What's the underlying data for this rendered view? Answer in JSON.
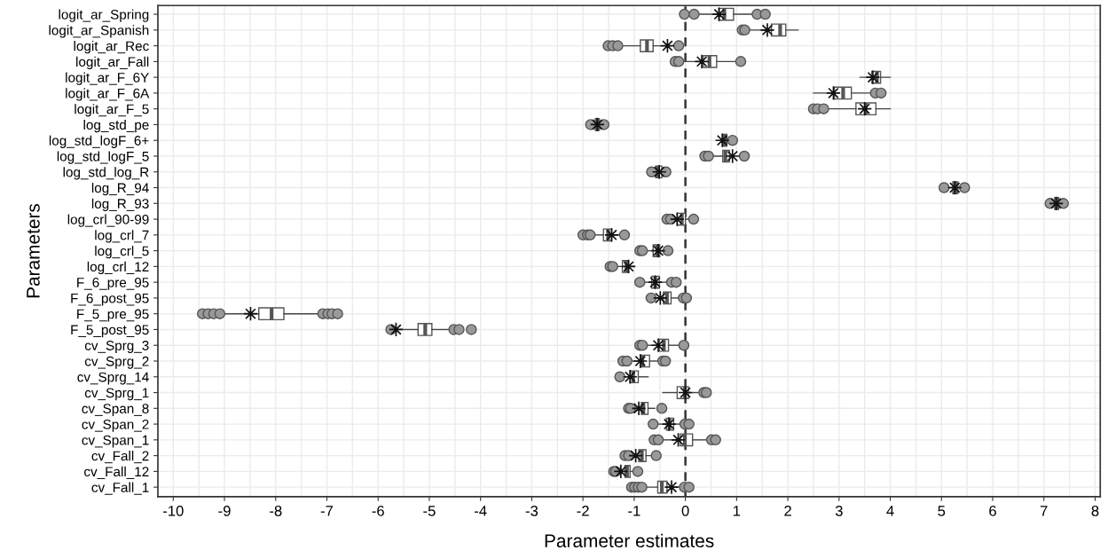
{
  "chart_data": {
    "type": "box",
    "orientation": "horizontal",
    "xlabel": "Parameter estimates",
    "ylabel": "Parameters",
    "categories": [
      "logit_ar_Spring",
      "logit_ar_Spanish",
      "logit_ar_Rec",
      "logit_ar_Fall",
      "logit_ar_F_6Y",
      "logit_ar_F_6A",
      "logit_ar_F_5",
      "log_std_pe",
      "log_std_logF_6+",
      "log_std_logF_5",
      "log_std_log_R",
      "log_R_94",
      "log_R_93",
      "log_crl_90-99",
      "log_crl_7",
      "log_crl_5",
      "log_crl_12",
      "F_6_pre_95",
      "F_6_post_95",
      "F_5_pre_95",
      "F_5_post_95",
      "cv_Sprg_3",
      "cv_Sprg_2",
      "cv_Sprg_14",
      "cv_Sprg_1",
      "cv_Span_8",
      "cv_Span_2",
      "cv_Span_1",
      "cv_Fall_2",
      "cv_Fall_12",
      "cv_Fall_1"
    ],
    "boxes": [
      {
        "low": 0.25,
        "q1": 0.65,
        "median": 0.76,
        "q3": 0.94,
        "high": 1.31,
        "mean": 0.66,
        "outliers": [
          -0.02,
          0.17,
          1.4,
          1.56
        ]
      },
      {
        "low": 1.26,
        "q1": 1.68,
        "median": 1.85,
        "q3": 1.96,
        "high": 2.2,
        "mean": 1.6,
        "outliers": [
          1.11,
          1.16
        ]
      },
      {
        "low": -1.22,
        "q1": -0.88,
        "median": -0.75,
        "q3": -0.63,
        "high": -0.44,
        "mean": -0.35,
        "outliers": [
          -1.51,
          -1.42,
          -1.32,
          -0.13
        ]
      },
      {
        "low": -0.01,
        "q1": 0.35,
        "median": 0.47,
        "q3": 0.61,
        "high": 0.99,
        "mean": 0.32,
        "outliers": [
          -0.2,
          -0.13,
          1.08
        ]
      },
      {
        "low": 3.41,
        "q1": 3.64,
        "median": 3.74,
        "q3": 3.81,
        "high": 4.0,
        "mean": 3.66
      },
      {
        "low": 2.5,
        "q1": 2.91,
        "median": 3.08,
        "q3": 3.24,
        "high": 3.65,
        "mean": 2.89,
        "outliers": [
          3.71,
          3.82
        ]
      },
      {
        "low": 2.79,
        "q1": 3.33,
        "median": 3.52,
        "q3": 3.72,
        "high": 4.0,
        "mean": 3.5,
        "outliers": [
          2.5,
          2.58,
          2.7
        ]
      },
      {
        "low": -1.8,
        "q1": -1.76,
        "median": -1.72,
        "q3": -1.68,
        "high": -1.62,
        "mean": -1.72,
        "outliers": [
          -1.85,
          -1.59
        ]
      },
      {
        "low": 0.7,
        "q1": 0.73,
        "median": 0.77,
        "q3": 0.81,
        "high": 0.86,
        "mean": 0.72,
        "outliers": [
          0.92
        ]
      },
      {
        "low": 0.52,
        "q1": 0.73,
        "median": 0.78,
        "q3": 0.86,
        "high": 0.95,
        "mean": 0.92,
        "outliers": [
          0.38,
          0.45,
          1.15
        ]
      },
      {
        "low": -0.62,
        "q1": -0.58,
        "median": -0.53,
        "q3": -0.46,
        "high": -0.42,
        "mean": -0.51,
        "outliers": [
          -0.66,
          -0.38
        ]
      },
      {
        "low": 5.12,
        "q1": 5.22,
        "median": 5.27,
        "q3": 5.32,
        "high": 5.38,
        "mean": 5.26,
        "outliers": [
          5.05,
          5.45
        ]
      },
      {
        "low": 7.17,
        "q1": 7.21,
        "median": 7.25,
        "q3": 7.29,
        "high": 7.33,
        "mean": 7.24,
        "outliers": [
          7.12,
          7.38
        ]
      },
      {
        "low": -0.24,
        "q1": -0.16,
        "median": -0.07,
        "q3": 0.0,
        "high": 0.08,
        "mean": -0.16,
        "outliers": [
          -0.36,
          -0.29,
          0.16
        ]
      },
      {
        "low": -1.75,
        "q1": -1.6,
        "median": -1.51,
        "q3": -1.44,
        "high": -1.3,
        "mean": -1.44,
        "outliers": [
          -2.0,
          -1.91,
          -1.86,
          -1.19
        ]
      },
      {
        "low": -0.78,
        "q1": -0.63,
        "median": -0.55,
        "q3": -0.5,
        "high": -0.42,
        "mean": -0.53,
        "outliers": [
          -0.89,
          -0.84,
          -0.34
        ]
      },
      {
        "low": -1.35,
        "q1": -1.23,
        "median": -1.15,
        "q3": -1.11,
        "high": -1.01,
        "mean": -1.11,
        "outliers": [
          -1.47,
          -1.42
        ]
      },
      {
        "low": -0.8,
        "q1": -0.66,
        "median": -0.59,
        "q3": -0.51,
        "high": -0.35,
        "mean": -0.59,
        "outliers": [
          -0.89,
          -0.27,
          -0.18
        ]
      },
      {
        "low": -0.6,
        "q1": -0.43,
        "median": -0.36,
        "q3": -0.28,
        "high": -0.12,
        "mean": -0.49,
        "outliers": [
          -0.67,
          -0.04,
          0.02
        ]
      },
      {
        "low": -9.0,
        "q1": -8.33,
        "median": -8.08,
        "q3": -7.84,
        "high": -7.16,
        "mean": -8.49,
        "outliers": [
          -9.43,
          -9.32,
          -9.21,
          -9.09,
          -7.08,
          -6.98,
          -6.9,
          -6.79
        ]
      },
      {
        "low": -5.6,
        "q1": -5.22,
        "median": -5.08,
        "q3": -4.95,
        "high": -4.6,
        "mean": -5.65,
        "outliers": [
          -5.75,
          -4.52,
          -4.42,
          -4.18
        ]
      },
      {
        "low": -0.78,
        "q1": -0.51,
        "median": -0.42,
        "q3": -0.33,
        "high": -0.1,
        "mean": -0.53,
        "outliers": [
          -0.89,
          -0.84,
          -0.03
        ]
      },
      {
        "low": -1.05,
        "q1": -0.88,
        "median": -0.84,
        "q3": -0.7,
        "high": -0.5,
        "mean": -0.88,
        "outliers": [
          -1.22,
          -1.14,
          -0.44,
          -0.39
        ]
      },
      {
        "low": -1.2,
        "q1": -1.08,
        "median": -1.02,
        "q3": -0.92,
        "high": -0.73,
        "mean": -1.08,
        "outliers": [
          -1.28
        ]
      },
      {
        "low": -0.44,
        "q1": -0.16,
        "median": -0.01,
        "q3": 0.06,
        "high": 0.28,
        "mean": 0.0,
        "outliers": [
          0.36,
          0.41
        ]
      },
      {
        "low": -1.0,
        "q1": -0.86,
        "median": -0.82,
        "q3": -0.73,
        "high": -0.6,
        "mean": -0.91,
        "outliers": [
          -1.11,
          -1.07,
          -0.46
        ]
      },
      {
        "low": -0.55,
        "q1": -0.37,
        "median": -0.31,
        "q3": -0.23,
        "high": -0.08,
        "mean": -0.32,
        "outliers": [
          -0.63,
          -0.01,
          0.07
        ]
      },
      {
        "low": -0.45,
        "q1": -0.1,
        "median": -0.01,
        "q3": 0.14,
        "high": 0.45,
        "mean": -0.14,
        "outliers": [
          -0.61,
          -0.53,
          0.51,
          0.59
        ]
      },
      {
        "low": -1.02,
        "q1": -0.91,
        "median": -0.85,
        "q3": -0.77,
        "high": -0.68,
        "mean": -0.97,
        "outliers": [
          -1.18,
          -1.11,
          -0.57
        ]
      },
      {
        "low": -1.3,
        "q1": -1.18,
        "median": -1.14,
        "q3": -1.08,
        "high": -1.0,
        "mean": -1.26,
        "outliers": [
          -1.4,
          -1.36,
          -0.93
        ]
      },
      {
        "low": -0.75,
        "q1": -0.54,
        "median": -0.46,
        "q3": -0.36,
        "high": -0.12,
        "mean": -0.27,
        "outliers": [
          -1.05,
          -0.99,
          -0.92,
          -0.85,
          -0.02,
          0.07
        ]
      }
    ],
    "xlim": [
      -10.3,
      8.1
    ],
    "xticks": [
      -10,
      -9,
      -8,
      -7,
      -6,
      -5,
      -4,
      -3,
      -2,
      -1,
      0,
      1,
      2,
      3,
      4,
      5,
      6,
      7,
      8
    ],
    "ref_lines": [
      {
        "axis": "x",
        "value": 0,
        "color": "#333333",
        "line_style": "dashed"
      }
    ],
    "grid": true
  }
}
